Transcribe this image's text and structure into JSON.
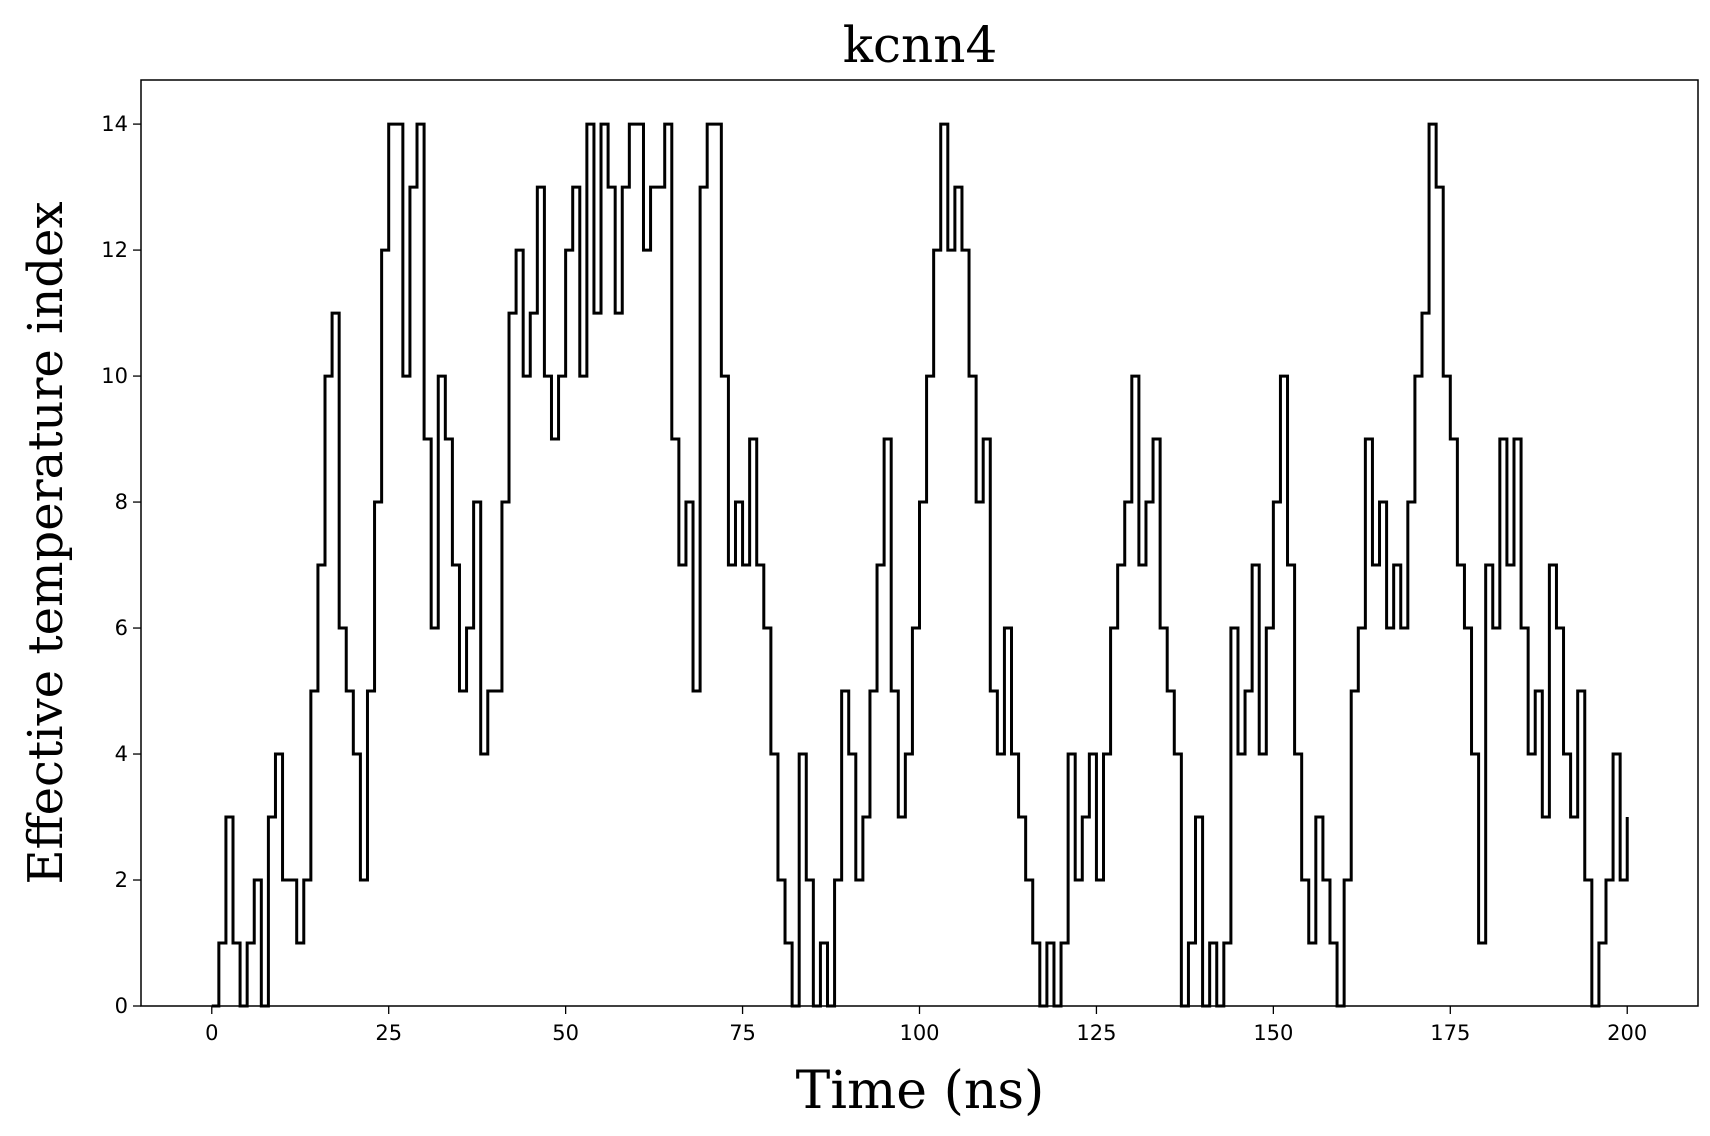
{
  "chart_data": {
    "type": "line",
    "title": "kcnn4",
    "xlabel": "Time (ns)",
    "ylabel": "Effective temperature index",
    "drawstyle": "steps",
    "color": "#000000",
    "x": [
      0,
      1,
      2,
      3,
      4,
      5,
      6,
      7,
      8,
      9,
      10,
      11,
      12,
      13,
      14,
      15,
      16,
      17,
      18,
      19,
      20,
      21,
      22,
      23,
      24,
      25,
      26,
      27,
      28,
      29,
      30,
      31,
      32,
      33,
      34,
      35,
      36,
      37,
      38,
      39,
      40,
      41,
      42,
      43,
      44,
      45,
      46,
      47,
      48,
      49,
      50,
      51,
      52,
      53,
      54,
      55,
      56,
      57,
      58,
      59,
      60,
      61,
      62,
      63,
      64,
      65,
      66,
      67,
      68,
      69,
      70,
      71,
      72,
      73,
      74,
      75,
      76,
      77,
      78,
      79,
      80,
      81,
      82,
      83,
      84,
      85,
      86,
      87,
      88,
      89,
      90,
      91,
      92,
      93,
      94,
      95,
      96,
      97,
      98,
      99,
      100,
      101,
      102,
      103,
      104,
      105,
      106,
      107,
      108,
      109,
      110,
      111,
      112,
      113,
      114,
      115,
      116,
      117,
      118,
      119,
      120,
      121,
      122,
      123,
      124,
      125,
      126,
      127,
      128,
      129,
      130,
      131,
      132,
      133,
      134,
      135,
      136,
      137,
      138,
      139,
      140,
      141,
      142,
      143,
      144,
      145,
      146,
      147,
      148,
      149,
      150,
      151,
      152,
      153,
      154,
      155,
      156,
      157,
      158,
      159,
      160,
      161,
      162,
      163,
      164,
      165,
      166,
      167,
      168,
      169,
      170,
      171,
      172,
      173,
      174,
      175,
      176,
      177,
      178,
      179,
      180,
      181,
      182,
      183,
      184,
      185,
      186,
      187,
      188,
      189,
      190,
      191,
      192,
      193,
      194,
      195,
      196,
      197,
      198,
      199,
      200
    ],
    "values": [
      0,
      1,
      3,
      1,
      0,
      1,
      2,
      0,
      3,
      4,
      2,
      2,
      1,
      2,
      5,
      7,
      10,
      11,
      6,
      5,
      4,
      2,
      5,
      8,
      12,
      14,
      14,
      10,
      13,
      14,
      9,
      6,
      10,
      9,
      7,
      5,
      6,
      8,
      4,
      5,
      5,
      8,
      11,
      12,
      10,
      11,
      13,
      10,
      9,
      10,
      12,
      13,
      10,
      14,
      11,
      14,
      13,
      11,
      13,
      14,
      14,
      12,
      13,
      13,
      14,
      9,
      7,
      8,
      5,
      13,
      14,
      14,
      10,
      7,
      8,
      7,
      9,
      7,
      6,
      4,
      2,
      1,
      0,
      4,
      2,
      0,
      1,
      0,
      2,
      5,
      4,
      2,
      3,
      5,
      7,
      9,
      5,
      3,
      4,
      6,
      8,
      10,
      12,
      14,
      12,
      13,
      12,
      10,
      8,
      9,
      5,
      4,
      6,
      4,
      3,
      2,
      1,
      0,
      1,
      0,
      1,
      4,
      2,
      3,
      4,
      2,
      4,
      6,
      7,
      8,
      10,
      7,
      8,
      9,
      6,
      5,
      4,
      0,
      1,
      3,
      0,
      1,
      0,
      1,
      6,
      4,
      5,
      7,
      4,
      6,
      8,
      10,
      7,
      4,
      2,
      1,
      3,
      2,
      1,
      0,
      2,
      5,
      6,
      9,
      7,
      8,
      6,
      7,
      6,
      8,
      10,
      11,
      14,
      13,
      10,
      9,
      7,
      6,
      4,
      1,
      7,
      6,
      9,
      7,
      9,
      6,
      4,
      5,
      3,
      7,
      6,
      4,
      3,
      5,
      2,
      0,
      1,
      2,
      4,
      2,
      3
    ],
    "xlim": [
      -10,
      210
    ],
    "xticks": [
      0,
      25,
      50,
      75,
      100,
      125,
      150,
      175,
      200
    ],
    "ylim": [
      0,
      14.7
    ],
    "yticks": [
      0,
      2,
      4,
      6,
      8,
      10,
      12,
      14
    ]
  }
}
